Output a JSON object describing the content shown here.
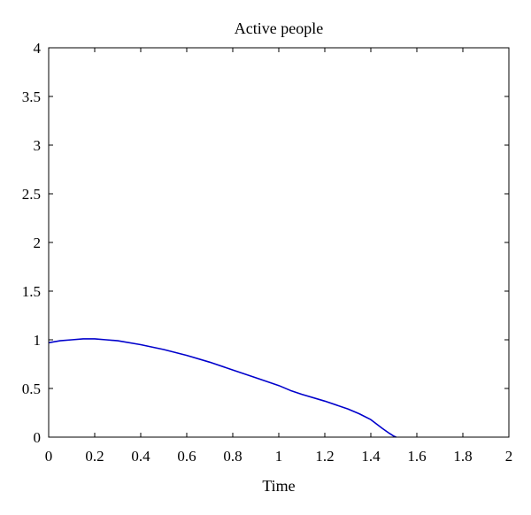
{
  "chart_data": {
    "type": "line",
    "title": "Active people",
    "xlabel": "Time",
    "ylabel": "",
    "xlim": [
      0,
      2
    ],
    "ylim": [
      0,
      4
    ],
    "xticks": [
      "0",
      "0.2",
      "0.4",
      "0.6",
      "0.8",
      "1",
      "1.2",
      "1.4",
      "1.6",
      "1.8",
      "2"
    ],
    "yticks": [
      "0",
      "0.5",
      "1",
      "1.5",
      "2",
      "2.5",
      "3",
      "3.5",
      "4"
    ],
    "grid": false,
    "series": [
      {
        "color": "#0000cc",
        "x": [
          0,
          0.05,
          0.1,
          0.15,
          0.2,
          0.25,
          0.3,
          0.4,
          0.5,
          0.6,
          0.7,
          0.8,
          0.9,
          1.0,
          1.05,
          1.1,
          1.2,
          1.3,
          1.35,
          1.4,
          1.45,
          1.48,
          1.5,
          1.51
        ],
        "y": [
          0.97,
          0.99,
          1.0,
          1.01,
          1.01,
          1.0,
          0.99,
          0.95,
          0.9,
          0.84,
          0.77,
          0.69,
          0.61,
          0.53,
          0.48,
          0.44,
          0.37,
          0.29,
          0.24,
          0.18,
          0.09,
          0.04,
          0.01,
          0.0
        ]
      }
    ]
  }
}
